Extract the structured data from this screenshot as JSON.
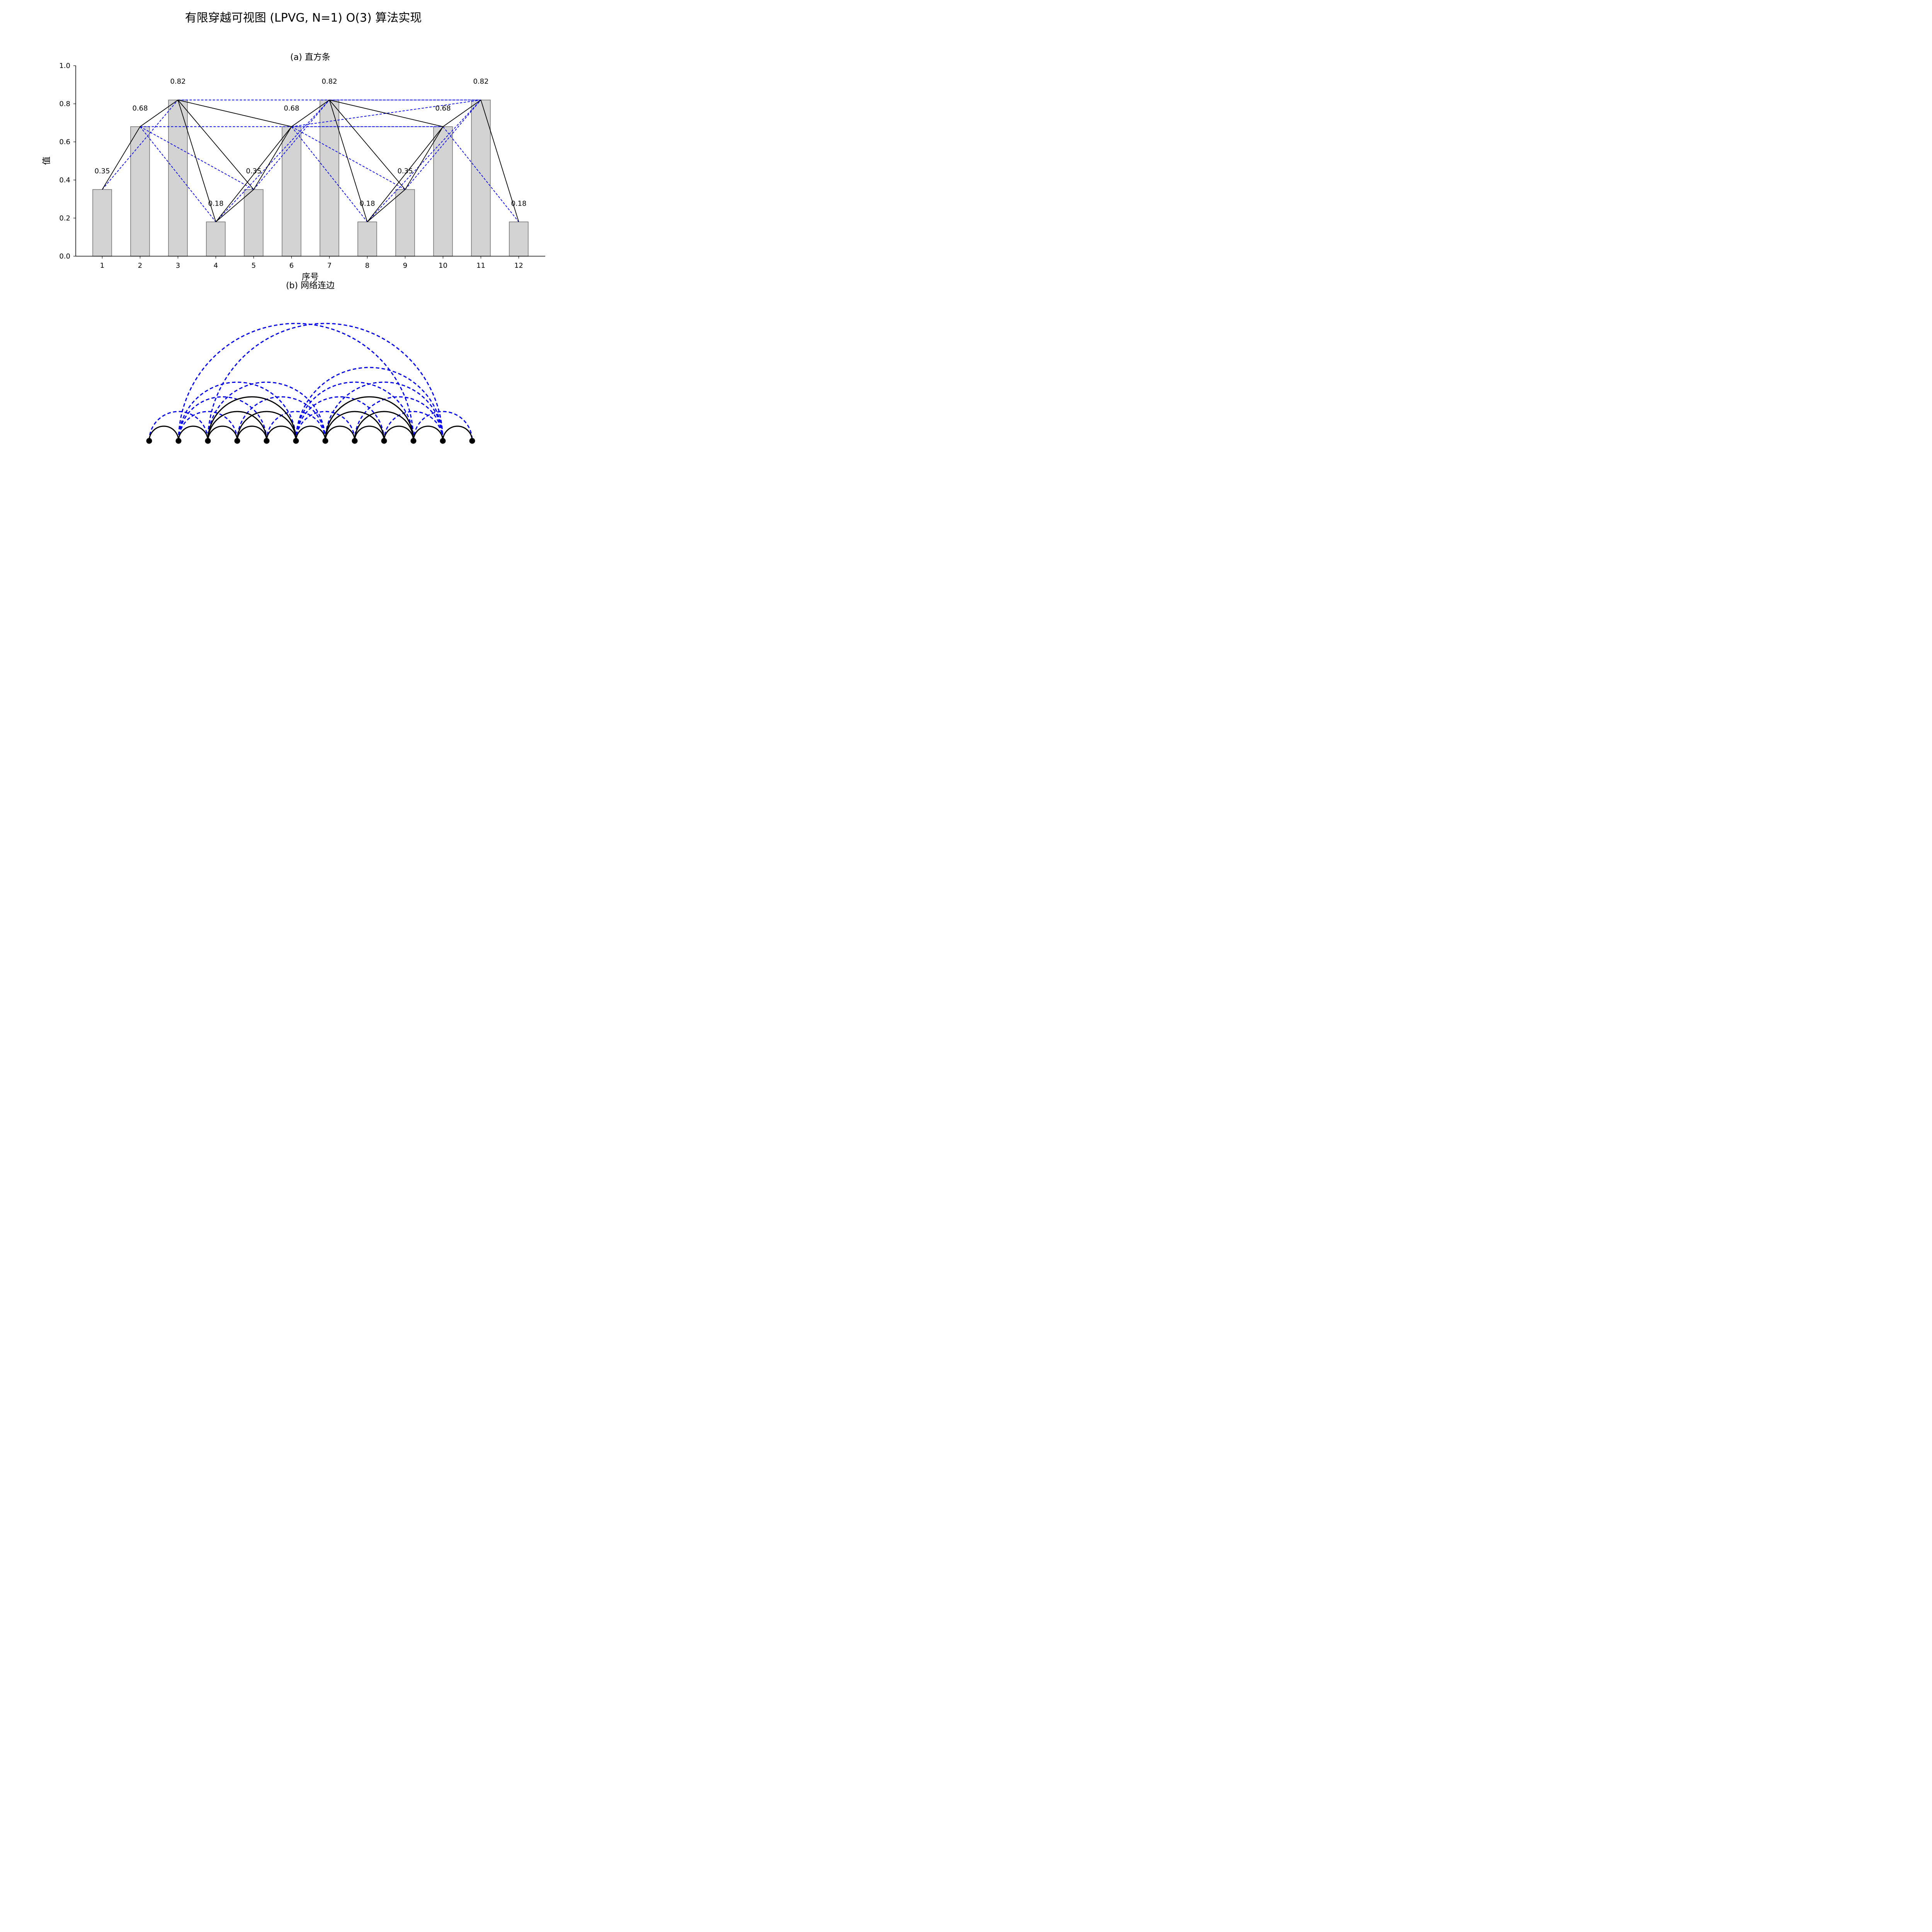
{
  "figure": {
    "title": "有限穿越可视图 (LPVG, N=1) O(3) 算法实现"
  },
  "chart_data": [
    {
      "type": "bar",
      "title": "(a) 直方条",
      "xlabel": "序号",
      "ylabel": "值",
      "categories": [
        "1",
        "2",
        "3",
        "4",
        "5",
        "6",
        "7",
        "8",
        "9",
        "10",
        "11",
        "12"
      ],
      "values": [
        0.35,
        0.68,
        0.82,
        0.18,
        0.35,
        0.68,
        0.82,
        0.18,
        0.35,
        0.68,
        0.82,
        0.18
      ],
      "value_labels": [
        "0.35",
        "0.68",
        "0.82",
        "0.18",
        "0.35",
        "0.68",
        "0.82",
        "0.18",
        "0.35",
        "0.68",
        "0.82",
        "0.18"
      ],
      "ylim": [
        0,
        1.0
      ],
      "yticks": [
        0.0,
        0.2,
        0.4,
        0.6,
        0.8,
        1.0
      ],
      "ytick_labels": [
        "0.0",
        "0.2",
        "0.4",
        "0.6",
        "0.8",
        "1.0"
      ],
      "grid": false,
      "edges_visible": [
        [
          1,
          2
        ],
        [
          2,
          3
        ],
        [
          3,
          4
        ],
        [
          3,
          5
        ],
        [
          3,
          6
        ],
        [
          4,
          5
        ],
        [
          4,
          6
        ],
        [
          5,
          6
        ],
        [
          6,
          7
        ],
        [
          7,
          8
        ],
        [
          7,
          9
        ],
        [
          7,
          10
        ],
        [
          8,
          9
        ],
        [
          8,
          10
        ],
        [
          9,
          10
        ],
        [
          10,
          11
        ],
        [
          11,
          12
        ]
      ],
      "edges_penetrating": [
        [
          1,
          3
        ],
        [
          2,
          4
        ],
        [
          2,
          5
        ],
        [
          2,
          6
        ],
        [
          2,
          10
        ],
        [
          3,
          7
        ],
        [
          3,
          11
        ],
        [
          4,
          7
        ],
        [
          5,
          7
        ],
        [
          6,
          8
        ],
        [
          6,
          9
        ],
        [
          6,
          10
        ],
        [
          6,
          11
        ],
        [
          7,
          11
        ],
        [
          8,
          11
        ],
        [
          9,
          11
        ],
        [
          10,
          12
        ]
      ]
    },
    {
      "type": "arc_network",
      "title": "(b) 网络连边",
      "nodes": [
        "1",
        "2",
        "3",
        "4",
        "5",
        "6",
        "7",
        "8",
        "9",
        "10",
        "11",
        "12"
      ]
    }
  ],
  "colors": {
    "bar_fill": "#d3d3d3",
    "bar_edge": "#707070",
    "visible_edge": "#000000",
    "penetrating_edge": "#0000ee"
  }
}
